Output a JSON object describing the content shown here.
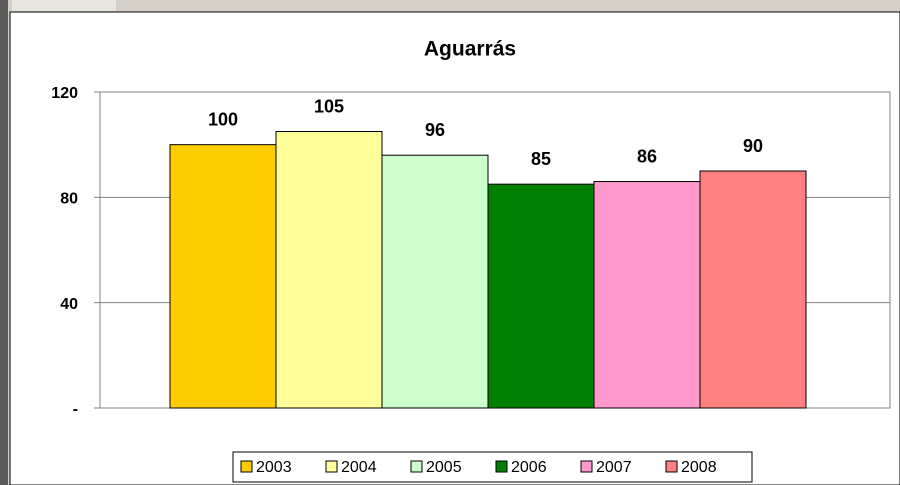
{
  "chart_data": {
    "type": "bar",
    "title": "Aguarrás",
    "categories": [
      null
    ],
    "series": [
      {
        "name": "2003",
        "color": "#ffcc00",
        "values": [
          100
        ]
      },
      {
        "name": "2004",
        "color": "#ffff99",
        "values": [
          105
        ]
      },
      {
        "name": "2005",
        "color": "#ccffcc",
        "values": [
          96
        ]
      },
      {
        "name": "2006",
        "color": "#008000",
        "values": [
          85
        ]
      },
      {
        "name": "2007",
        "color": "#ff99cc",
        "values": [
          86
        ]
      },
      {
        "name": "2008",
        "color": "#ff8080",
        "values": [
          90
        ]
      }
    ],
    "ylim": [
      0,
      120
    ],
    "yticks": [
      {
        "value": 0,
        "label": "-"
      },
      40,
      80,
      120
    ],
    "grid": true,
    "legend": "bottom"
  }
}
